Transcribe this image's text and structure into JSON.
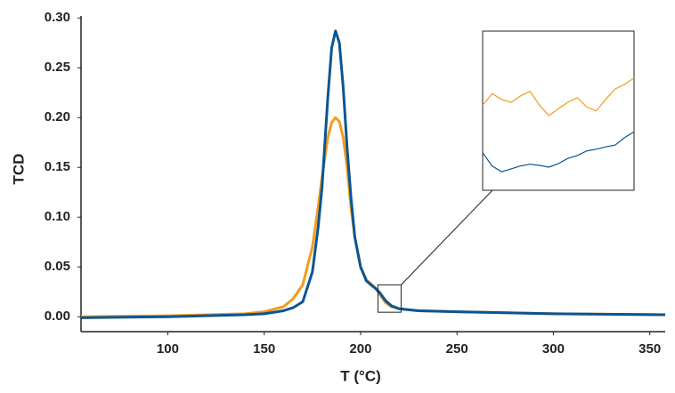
{
  "chart_data": {
    "type": "line",
    "xlabel": "T (°C)",
    "ylabel": "TCD",
    "xlim": [
      55,
      358
    ],
    "ylim": [
      -0.015,
      0.302
    ],
    "xticks": [
      100,
      150,
      200,
      250,
      300,
      350
    ],
    "yticks": [
      {
        "value": 0,
        "label": "0.00"
      },
      {
        "value": 0.05,
        "label": "0.05"
      },
      {
        "value": 0.1,
        "label": "0.10"
      },
      {
        "value": 0.15,
        "label": "0.15"
      },
      {
        "value": 0.2,
        "label": "0.20"
      },
      {
        "value": 0.25,
        "label": "0.25"
      },
      {
        "value": 0.3,
        "label": "0.30"
      }
    ],
    "grid": false,
    "x": [
      55,
      100,
      140,
      150,
      160,
      165,
      170,
      175,
      178,
      180,
      183,
      185,
      187,
      189,
      191,
      193,
      195,
      197,
      200,
      203,
      206,
      208,
      210,
      213,
      216,
      220,
      230,
      250,
      300,
      358
    ],
    "series": [
      {
        "color": "#f39c1f",
        "values": [
          0.0,
          0.001,
          0.003,
          0.005,
          0.01,
          0.018,
          0.032,
          0.07,
          0.11,
          0.14,
          0.18,
          0.195,
          0.2,
          0.196,
          0.18,
          0.15,
          0.11,
          0.08,
          0.05,
          0.037,
          0.032,
          0.028,
          0.022,
          0.014,
          0.01,
          0.008,
          0.006,
          0.005,
          0.003,
          0.002
        ]
      },
      {
        "color": "#0a5592",
        "values": [
          -0.001,
          0.0,
          0.002,
          0.003,
          0.006,
          0.009,
          0.015,
          0.045,
          0.09,
          0.13,
          0.22,
          0.27,
          0.287,
          0.275,
          0.23,
          0.17,
          0.12,
          0.08,
          0.05,
          0.036,
          0.031,
          0.028,
          0.024,
          0.016,
          0.011,
          0.008,
          0.006,
          0.005,
          0.003,
          0.002
        ]
      }
    ],
    "inset": {
      "xlim": [
        209,
        221
      ],
      "ylim": [
        0.0045,
        0.032
      ],
      "x": [
        209,
        209.75,
        210.5,
        211.25,
        212,
        212.75,
        213.5,
        214.25,
        215,
        215.75,
        216.5,
        217.25,
        218,
        218.75,
        219.5,
        220.25,
        221
      ],
      "series": [
        {
          "color": "#f39c1f",
          "values": [
            0.0192,
            0.0212,
            0.0202,
            0.0197,
            0.0208,
            0.0216,
            0.0192,
            0.0174,
            0.0186,
            0.0197,
            0.0205,
            0.0189,
            0.0182,
            0.0202,
            0.022,
            0.0228,
            0.0239
          ]
        },
        {
          "color": "#0a5592",
          "values": [
            0.011,
            0.0087,
            0.0077,
            0.0082,
            0.0087,
            0.009,
            0.0088,
            0.0085,
            0.0091,
            0.01,
            0.0105,
            0.0113,
            0.0116,
            0.012,
            0.0123,
            0.0136,
            0.0146
          ]
        }
      ]
    }
  }
}
